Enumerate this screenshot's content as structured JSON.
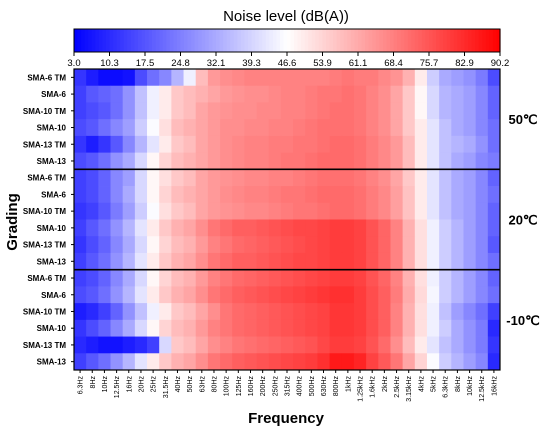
{
  "chart_data": {
    "type": "heatmap",
    "title": "Noise level (dB(A))",
    "xlabel": "Frequency",
    "ylabel": "Grading",
    "colorbar": {
      "min": 3.0,
      "max": 90.2,
      "ticks": [
        "3.0",
        "10.3",
        "17.5",
        "24.8",
        "32.1",
        "39.3",
        "46.6",
        "53.9",
        "61.1",
        "68.4",
        "75.7",
        "82.9",
        "90.2"
      ],
      "low_color": "#0000ff",
      "mid_color": "#ffffff",
      "high_color": "#ff0000"
    },
    "x": [
      "6.3Hz",
      "8Hz",
      "10Hz",
      "12.5Hz",
      "16Hz",
      "20Hz",
      "25Hz",
      "31.5Hz",
      "40Hz",
      "50Hz",
      "63Hz",
      "80Hz",
      "100Hz",
      "125Hz",
      "160Hz",
      "200Hz",
      "250Hz",
      "315Hz",
      "400Hz",
      "500Hz",
      "630Hz",
      "800Hz",
      "1kHz",
      "1.25kHz",
      "1.6kHz",
      "2kHz",
      "2.5kHz",
      "3.15kHz",
      "4kHz",
      "5kHz",
      "6.3kHz",
      "8kHz",
      "10kHz",
      "12.5kHz",
      "16kHz"
    ],
    "rows": [
      "SMA-6 TM",
      "SMA-6",
      "SMA-10 TM",
      "SMA-10",
      "SMA-13 TM",
      "SMA-13",
      "SMA-6 TM",
      "SMA-6",
      "SMA-10 TM",
      "SMA-10",
      "SMA-13 TM",
      "SMA-13",
      "SMA-6 TM",
      "SMA-6",
      "SMA-10 TM",
      "SMA-10",
      "SMA-13 TM",
      "SMA-13"
    ],
    "groups": [
      {
        "label": "50℃",
        "rows": [
          0,
          5
        ]
      },
      {
        "label": "20℃",
        "rows": [
          6,
          11
        ]
      },
      {
        "label": "-10℃",
        "rows": [
          12,
          17
        ]
      }
    ],
    "values": [
      [
        12,
        8,
        5,
        5,
        6,
        16,
        22,
        26,
        34,
        44,
        58,
        64,
        66,
        67,
        68,
        68,
        68,
        68,
        68,
        68,
        68,
        69,
        70,
        69,
        69,
        67,
        65,
        60,
        50,
        38,
        32,
        30,
        28,
        24,
        16
      ],
      [
        14,
        18,
        20,
        22,
        28,
        36,
        44,
        50,
        56,
        58,
        60,
        62,
        64,
        65,
        66,
        66,
        67,
        68,
        68,
        69,
        70,
        70,
        71,
        70,
        68,
        66,
        62,
        56,
        48,
        40,
        34,
        32,
        30,
        26,
        20
      ],
      [
        14,
        16,
        18,
        22,
        28,
        36,
        44,
        50,
        56,
        58,
        62,
        64,
        65,
        66,
        66,
        67,
        67,
        68,
        68,
        69,
        70,
        71,
        71,
        70,
        68,
        66,
        62,
        56,
        48,
        40,
        34,
        32,
        30,
        26,
        20
      ],
      [
        16,
        18,
        22,
        26,
        30,
        38,
        46,
        52,
        58,
        60,
        62,
        64,
        66,
        66,
        67,
        67,
        68,
        68,
        69,
        70,
        71,
        71,
        71,
        70,
        68,
        66,
        62,
        56,
        50,
        42,
        36,
        32,
        30,
        26,
        22
      ],
      [
        12,
        8,
        12,
        18,
        26,
        34,
        42,
        50,
        56,
        58,
        62,
        64,
        66,
        67,
        68,
        68,
        69,
        69,
        70,
        70,
        71,
        72,
        72,
        71,
        69,
        67,
        64,
        58,
        50,
        42,
        36,
        34,
        32,
        28,
        22
      ],
      [
        16,
        18,
        22,
        28,
        32,
        40,
        48,
        54,
        58,
        60,
        62,
        64,
        66,
        67,
        68,
        68,
        69,
        70,
        70,
        71,
        72,
        72,
        72,
        71,
        69,
        67,
        64,
        58,
        50,
        42,
        36,
        32,
        30,
        26,
        24
      ],
      [
        14,
        16,
        20,
        26,
        30,
        40,
        48,
        52,
        56,
        58,
        62,
        64,
        65,
        66,
        67,
        67,
        68,
        68,
        69,
        70,
        71,
        71,
        71,
        70,
        68,
        66,
        62,
        56,
        50,
        42,
        36,
        32,
        30,
        26,
        20
      ],
      [
        14,
        16,
        20,
        26,
        32,
        40,
        48,
        54,
        58,
        60,
        62,
        64,
        66,
        67,
        68,
        68,
        69,
        70,
        70,
        71,
        72,
        72,
        72,
        71,
        69,
        67,
        63,
        57,
        50,
        42,
        36,
        32,
        30,
        26,
        22
      ],
      [
        12,
        14,
        18,
        24,
        30,
        38,
        46,
        52,
        56,
        58,
        62,
        64,
        65,
        66,
        67,
        67,
        68,
        69,
        70,
        70,
        71,
        72,
        72,
        71,
        69,
        67,
        63,
        57,
        50,
        42,
        36,
        32,
        30,
        26,
        20
      ],
      [
        14,
        18,
        22,
        28,
        34,
        42,
        50,
        56,
        60,
        62,
        66,
        70,
        72,
        74,
        74,
        75,
        76,
        77,
        78,
        78,
        79,
        80,
        80,
        79,
        76,
        73,
        68,
        60,
        52,
        44,
        38,
        34,
        30,
        26,
        20
      ],
      [
        12,
        16,
        20,
        26,
        32,
        40,
        48,
        54,
        58,
        60,
        64,
        68,
        70,
        72,
        73,
        74,
        75,
        76,
        77,
        78,
        79,
        80,
        80,
        79,
        76,
        73,
        68,
        60,
        52,
        44,
        38,
        34,
        30,
        26,
        18
      ],
      [
        14,
        18,
        22,
        28,
        34,
        42,
        50,
        56,
        60,
        62,
        66,
        70,
        72,
        74,
        74,
        75,
        76,
        77,
        78,
        78,
        79,
        80,
        80,
        79,
        76,
        73,
        68,
        60,
        52,
        44,
        38,
        34,
        30,
        26,
        22
      ],
      [
        14,
        16,
        20,
        26,
        32,
        40,
        48,
        54,
        58,
        60,
        64,
        68,
        70,
        72,
        73,
        74,
        75,
        76,
        77,
        78,
        79,
        80,
        80,
        79,
        76,
        73,
        68,
        60,
        52,
        44,
        38,
        34,
        30,
        26,
        20
      ],
      [
        16,
        18,
        22,
        28,
        34,
        42,
        50,
        56,
        60,
        62,
        66,
        70,
        72,
        74,
        75,
        76,
        77,
        78,
        79,
        80,
        81,
        82,
        82,
        80,
        77,
        74,
        69,
        61,
        53,
        45,
        38,
        34,
        30,
        26,
        22
      ],
      [
        8,
        10,
        14,
        20,
        28,
        36,
        44,
        50,
        56,
        58,
        62,
        66,
        70,
        72,
        73,
        74,
        75,
        76,
        77,
        78,
        79,
        81,
        81,
        80,
        77,
        74,
        68,
        60,
        52,
        44,
        36,
        30,
        26,
        22,
        14
      ],
      [
        12,
        16,
        20,
        26,
        32,
        40,
        48,
        54,
        58,
        60,
        64,
        68,
        70,
        72,
        73,
        74,
        75,
        76,
        77,
        78,
        79,
        81,
        81,
        80,
        77,
        74,
        68,
        60,
        52,
        44,
        38,
        32,
        28,
        24,
        10
      ],
      [
        10,
        8,
        6,
        6,
        8,
        10,
        14,
        40,
        56,
        58,
        62,
        66,
        68,
        70,
        71,
        72,
        73,
        74,
        75,
        76,
        78,
        80,
        80,
        79,
        76,
        72,
        66,
        58,
        50,
        42,
        36,
        32,
        28,
        24,
        12
      ],
      [
        14,
        18,
        22,
        28,
        34,
        42,
        50,
        56,
        60,
        62,
        66,
        70,
        72,
        74,
        75,
        76,
        77,
        78,
        79,
        80,
        82,
        86,
        86,
        84,
        79,
        75,
        70,
        62,
        54,
        46,
        38,
        34,
        30,
        26,
        10
      ]
    ]
  }
}
